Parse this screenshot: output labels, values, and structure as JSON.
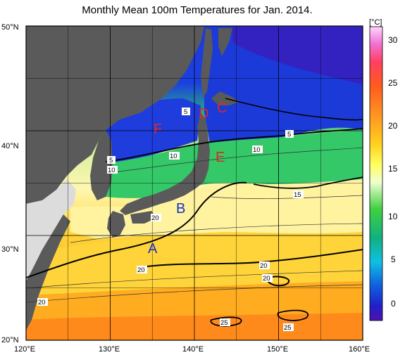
{
  "title": "Monthly Mean 100m Temperatures for Jan. 2014.",
  "map": {
    "lon_labels": [
      "120°E",
      "130°E",
      "140°E",
      "150°E",
      "160°E"
    ],
    "lat_labels": [
      "50°N",
      "40°N",
      "30°N",
      "20°N"
    ],
    "lon_range": [
      120,
      160
    ],
    "lat_range": [
      20,
      50
    ]
  },
  "colorbar": {
    "unit": "[°C]",
    "ticks": [
      "30",
      "25",
      "20",
      "15",
      "10",
      "5",
      "0"
    ],
    "range": [
      -3,
      31
    ]
  },
  "contour_labels": [
    "5",
    "5",
    "5",
    "10",
    "10",
    "10",
    "15",
    "20",
    "20",
    "20",
    "20",
    "20",
    "25",
    "25"
  ],
  "region_markers": [
    {
      "letter": "A",
      "color": "#1530c8"
    },
    {
      "letter": "B",
      "color": "#1530c8"
    },
    {
      "letter": "C",
      "color": "#e0281e"
    },
    {
      "letter": "D",
      "color": "#e0281e"
    },
    {
      "letter": "E",
      "color": "#e0281e"
    },
    {
      "letter": "F",
      "color": "#e0281e"
    }
  ],
  "colors": {
    "land": "#5a5a5a",
    "unmapped_land": "#dcdcdc",
    "grid": "#000000"
  }
}
